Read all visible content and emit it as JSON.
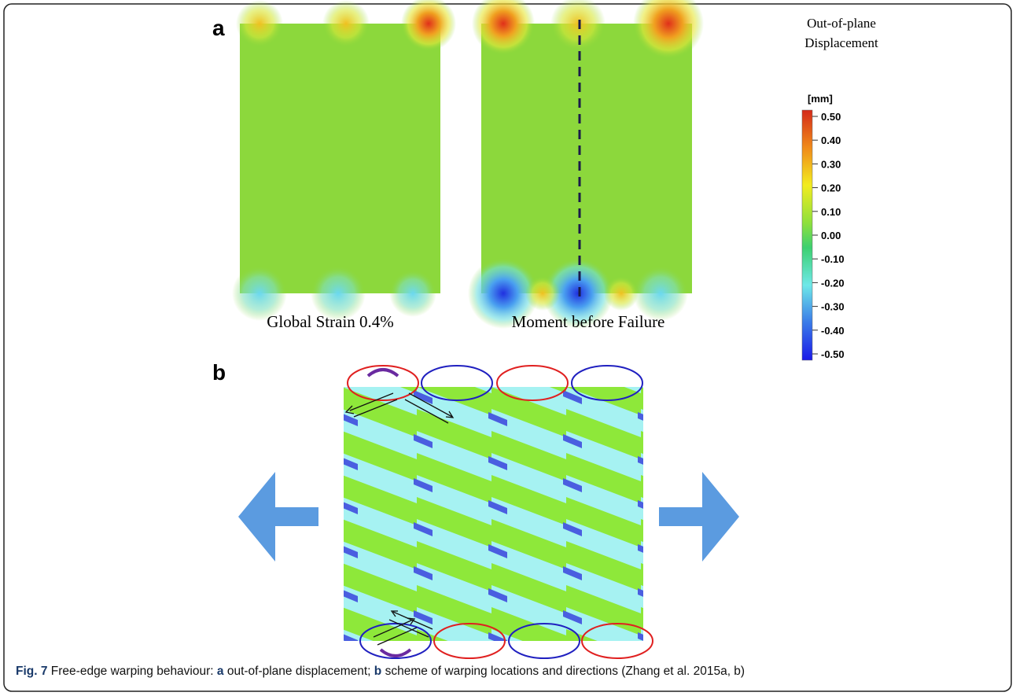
{
  "panel_a": {
    "label": "a",
    "left_caption": "Global Strain 0.4%",
    "right_caption": "Moment before Failure",
    "legend": {
      "title_line_1": "Out-of-plane",
      "title_line_2": "Displacement",
      "unit": "[mm]",
      "labels": [
        "0.50",
        "0.40",
        "0.30",
        "0.20",
        "0.10",
        "0.00",
        "-0.10",
        "-0.20",
        "-0.30",
        "-0.40",
        "-0.50"
      ]
    }
  },
  "panel_b": {
    "label": "b"
  },
  "caption": {
    "runs": [
      {
        "text": "Fig. 7",
        "bold": true
      },
      {
        "text": " Free-edge warping behaviour: ",
        "bold": false
      },
      {
        "text": "a",
        "bold": true
      },
      {
        "text": " out-of-plane displacement; ",
        "bold": false
      },
      {
        "text": "b",
        "bold": true
      },
      {
        "text": " scheme of warping locations and directions (Zhang et al. 2015a, b)",
        "bold": false
      }
    ]
  }
}
